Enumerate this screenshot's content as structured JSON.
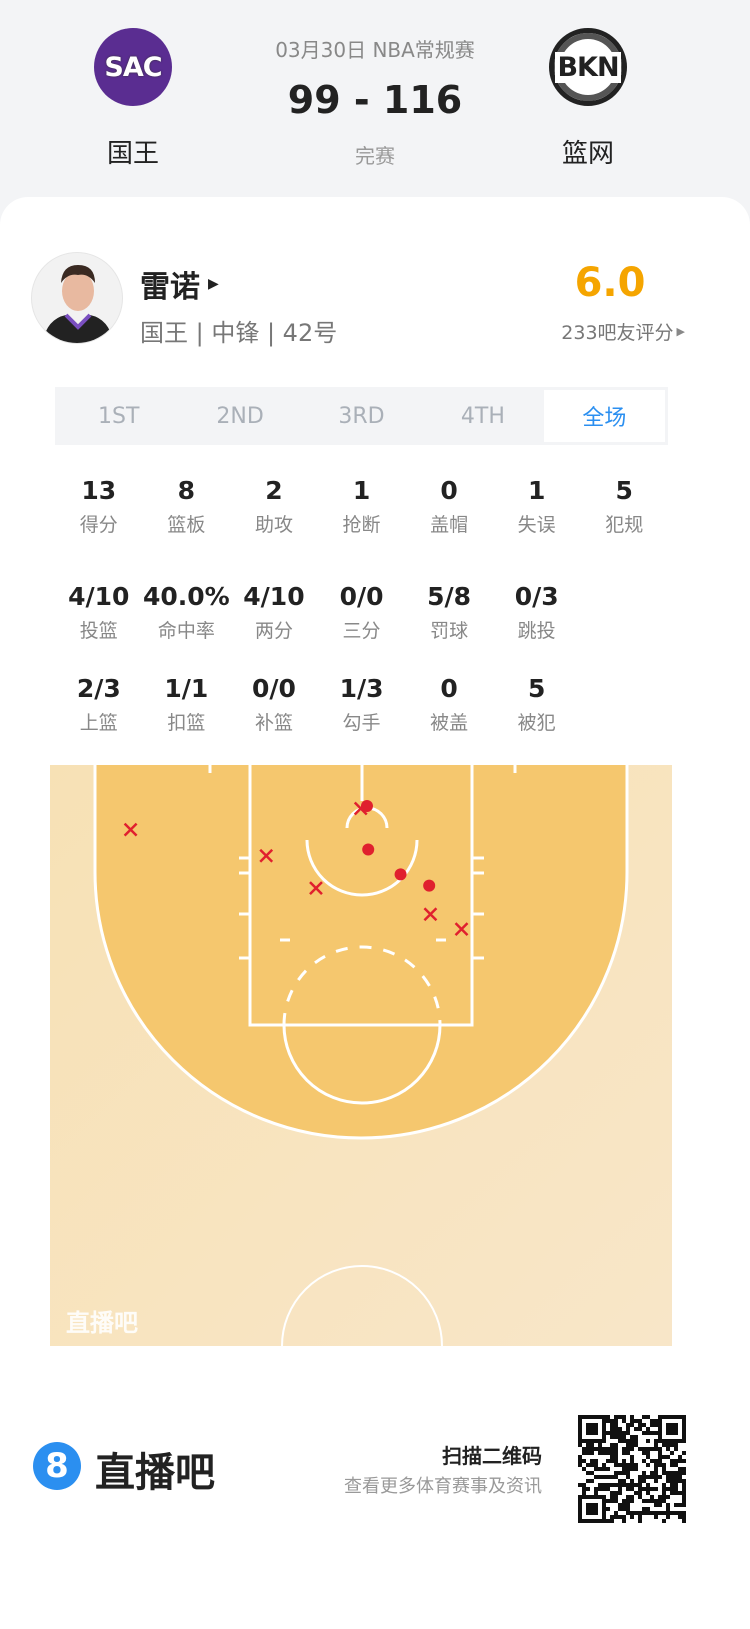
{
  "header": {
    "date_league": "03月30日 NBA常规赛",
    "score": "99 - 116",
    "status": "完赛",
    "home": {
      "abbr": "SAC",
      "name": "国王",
      "color": "#5a2d91"
    },
    "away": {
      "abbr": "BKN",
      "name": "篮网",
      "color": "#222222"
    }
  },
  "player": {
    "name": "雷诺",
    "info": "国王 | 中锋 | 42号",
    "rating": "6.0",
    "rating_label": "233吧友评分",
    "rating_color": "#f5a500"
  },
  "tabs": [
    {
      "label": "1ST"
    },
    {
      "label": "2ND"
    },
    {
      "label": "3RD"
    },
    {
      "label": "4TH"
    },
    {
      "label": "全场",
      "active": true
    }
  ],
  "stats_rows": [
    [
      {
        "v": "13",
        "l": "得分"
      },
      {
        "v": "8",
        "l": "篮板"
      },
      {
        "v": "2",
        "l": "助攻"
      },
      {
        "v": "1",
        "l": "抢断"
      },
      {
        "v": "0",
        "l": "盖帽"
      },
      {
        "v": "1",
        "l": "失误"
      },
      {
        "v": "5",
        "l": "犯规"
      }
    ],
    [
      {
        "v": "4/10",
        "l": "投篮"
      },
      {
        "v": "40.0%",
        "l": "命中率"
      },
      {
        "v": "4/10",
        "l": "两分"
      },
      {
        "v": "0/0",
        "l": "三分"
      },
      {
        "v": "5/8",
        "l": "罚球"
      },
      {
        "v": "0/3",
        "l": "跳投"
      }
    ],
    [
      {
        "v": "2/3",
        "l": "上篮"
      },
      {
        "v": "1/1",
        "l": "扣篮"
      },
      {
        "v": "0/0",
        "l": "补篮"
      },
      {
        "v": "1/3",
        "l": "勾手"
      },
      {
        "v": "0",
        "l": "被盖"
      },
      {
        "v": "5",
        "l": "被犯"
      }
    ]
  ],
  "shot_chart": {
    "units": "feet from basket",
    "watermark": "直播吧",
    "make_color": "#e0202e",
    "miss_color": "#e0202e",
    "shots": [
      {
        "x": -18.6,
        "y": 1.9,
        "made": false
      },
      {
        "x": -7.7,
        "y": 4.0,
        "made": false
      },
      {
        "x": -3.7,
        "y": 6.6,
        "made": false
      },
      {
        "x": -0.1,
        "y": 0.2,
        "made": false
      },
      {
        "x": 5.5,
        "y": 8.7,
        "made": false
      },
      {
        "x": 8.0,
        "y": 9.9,
        "made": false
      },
      {
        "x": 0.4,
        "y": 0.0,
        "made": true
      },
      {
        "x": 0.5,
        "y": 3.5,
        "made": true
      },
      {
        "x": 3.1,
        "y": 5.5,
        "made": true
      },
      {
        "x": 5.4,
        "y": 6.4,
        "made": true
      }
    ]
  },
  "footer": {
    "brand": "直播吧",
    "logo_digit": "8",
    "brand_color": "#2b8ff0",
    "scan_title": "扫描二维码",
    "scan_sub": "查看更多体育赛事及资讯"
  }
}
